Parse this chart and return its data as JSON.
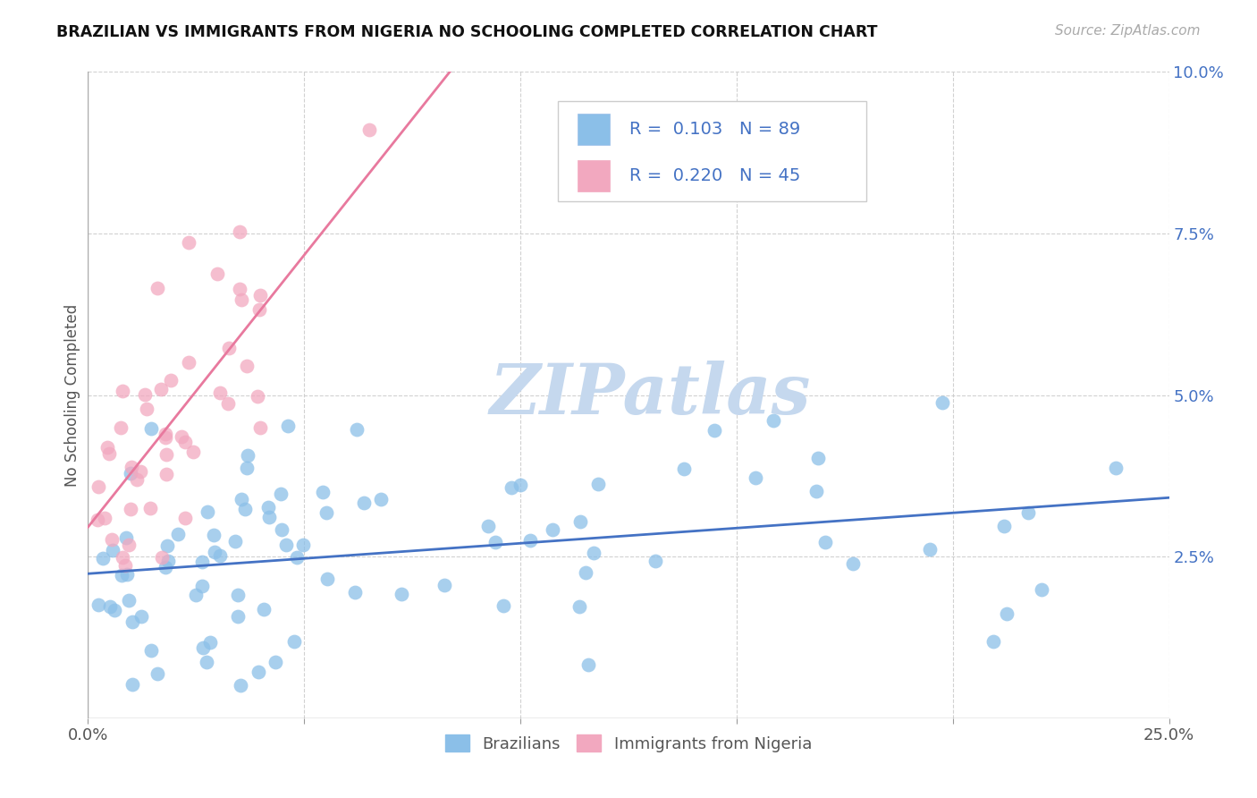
{
  "title": "BRAZILIAN VS IMMIGRANTS FROM NIGERIA NO SCHOOLING COMPLETED CORRELATION CHART",
  "source": "Source: ZipAtlas.com",
  "ylabel": "No Schooling Completed",
  "xlim": [
    0.0,
    0.25
  ],
  "ylim": [
    0.0,
    0.1
  ],
  "xtick_positions": [
    0.0,
    0.05,
    0.1,
    0.15,
    0.2,
    0.25
  ],
  "ytick_positions": [
    0.0,
    0.025,
    0.05,
    0.075,
    0.1
  ],
  "blue_R": "0.103",
  "blue_N": "89",
  "pink_R": "0.220",
  "pink_N": "45",
  "blue_color": "#8bbfe8",
  "pink_color": "#f2a8bf",
  "blue_line_color": "#4472c4",
  "pink_line_color": "#e8799e",
  "grid_color": "#cccccc",
  "right_tick_color": "#4472c4",
  "legend_label_blue": "Brazilians",
  "legend_label_pink": "Immigrants from Nigeria",
  "watermark_color": "#c5d8ee",
  "blue_seed": 101,
  "pink_seed": 202
}
